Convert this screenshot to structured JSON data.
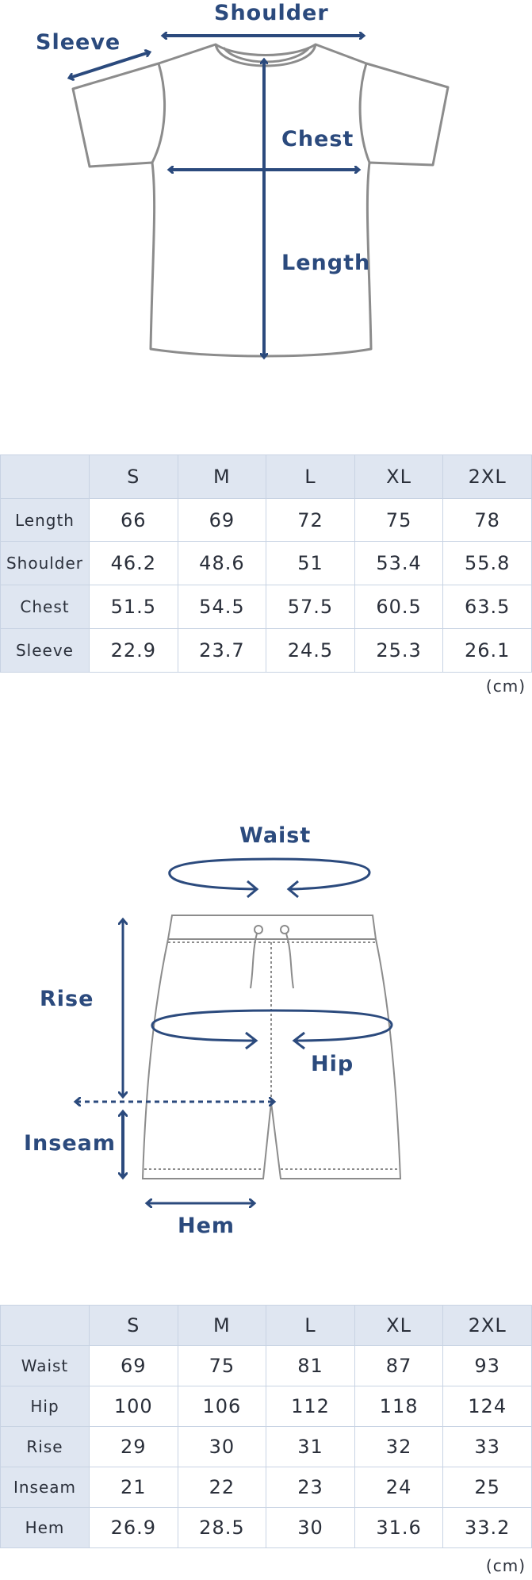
{
  "shirt": {
    "labels": {
      "shoulder": "Shoulder",
      "sleeve": "Sleeve",
      "chest": "Chest",
      "length": "Length"
    },
    "table": {
      "sizes": [
        "S",
        "M",
        "L",
        "XL",
        "2XL"
      ],
      "rows": [
        {
          "name": "Length",
          "values": [
            "66",
            "69",
            "72",
            "75",
            "78"
          ]
        },
        {
          "name": "Shoulder",
          "values": [
            "46.2",
            "48.6",
            "51",
            "53.4",
            "55.8"
          ]
        },
        {
          "name": "Chest",
          "values": [
            "51.5",
            "54.5",
            "57.5",
            "60.5",
            "63.5"
          ]
        },
        {
          "name": "Sleeve",
          "values": [
            "22.9",
            "23.7",
            "24.5",
            "25.3",
            "26.1"
          ]
        }
      ],
      "unit": "(cm)"
    }
  },
  "shorts": {
    "labels": {
      "waist": "Waist",
      "rise": "Rise",
      "hip": "Hip",
      "inseam": "Inseam",
      "hem": "Hem"
    },
    "table": {
      "sizes": [
        "S",
        "M",
        "L",
        "XL",
        "2XL"
      ],
      "rows": [
        {
          "name": "Waist",
          "values": [
            "69",
            "75",
            "81",
            "87",
            "93"
          ]
        },
        {
          "name": "Hip",
          "values": [
            "100",
            "106",
            "112",
            "118",
            "124"
          ]
        },
        {
          "name": "Rise",
          "values": [
            "29",
            "30",
            "31",
            "32",
            "33"
          ]
        },
        {
          "name": "Inseam",
          "values": [
            "21",
            "22",
            "23",
            "24",
            "25"
          ]
        },
        {
          "name": "Hem",
          "values": [
            "26.9",
            "28.5",
            "30",
            "31.6",
            "33.2"
          ]
        }
      ],
      "unit": "(cm)"
    }
  },
  "colors": {
    "arrow": "#2b4a7d",
    "garment": "#8c8c8c",
    "header_bg": "#dfe6f1",
    "grid": "#c8d3e3"
  }
}
